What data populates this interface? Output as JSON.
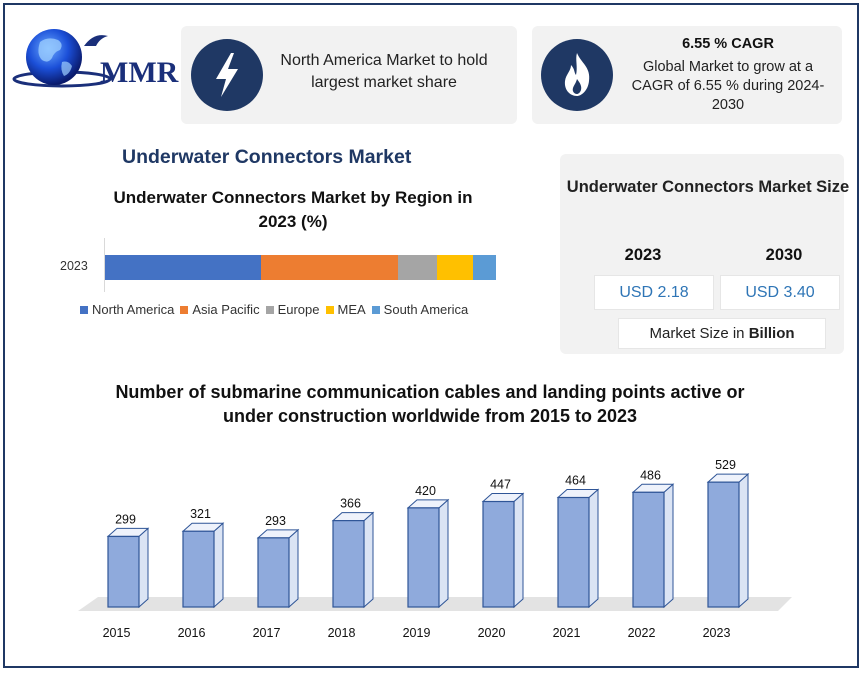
{
  "brand": {
    "name": "MMR"
  },
  "cards": {
    "market_share": {
      "text": "North America Market to hold largest market share",
      "icon": "lightning-icon"
    },
    "cagr": {
      "heading": "6.55 % CAGR",
      "text": "Global Market to grow at a CAGR of 6.55 % during 2024-2030",
      "icon": "flame-icon"
    }
  },
  "main_title": "Underwater Connectors Market",
  "market_size": {
    "title": "Underwater Connectors Market Size",
    "year_1": "2023",
    "year_2": "2030",
    "value_1": "USD 2.18",
    "value_2": "USD 3.40",
    "note_prefix": "Market Size in ",
    "note_bold": "Billion"
  },
  "colors": {
    "navy": "#1f3864",
    "bar": "#8faadc",
    "bar_edge": "#2f5597"
  },
  "chart_data": [
    {
      "type": "bar",
      "orientation": "horizontal-stacked",
      "title": "Underwater Connectors Market by Region in 2023 (%)",
      "categories": [
        "2023"
      ],
      "series": [
        {
          "name": "North America",
          "values": [
            40
          ],
          "color": "#4472c4"
        },
        {
          "name": "Asia Pacific",
          "values": [
            35
          ],
          "color": "#ed7d31"
        },
        {
          "name": "Europe",
          "values": [
            10
          ],
          "color": "#a5a5a5"
        },
        {
          "name": "MEA",
          "values": [
            9
          ],
          "color": "#ffc000"
        },
        {
          "name": "South America",
          "values": [
            6
          ],
          "color": "#5b9bd5"
        }
      ],
      "legend": "bottom"
    },
    {
      "type": "bar",
      "title": "Number of submarine communication cables and landing points active or under construction worldwide from 2015 to 2023",
      "categories": [
        "2015",
        "2016",
        "2017",
        "2018",
        "2019",
        "2020",
        "2021",
        "2022",
        "2023"
      ],
      "values": [
        299,
        321,
        293,
        366,
        420,
        447,
        464,
        486,
        529
      ],
      "style": "3d-column"
    }
  ]
}
